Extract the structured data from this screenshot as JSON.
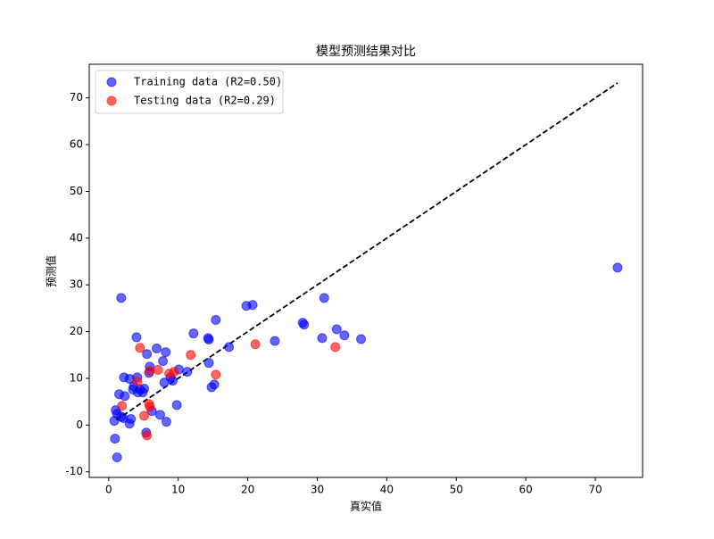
{
  "chart_data": {
    "type": "scatter",
    "title": "模型预测结果对比",
    "x_label": "真实值",
    "y_label": "预测值",
    "xlim": [
      -2.8,
      76.8
    ],
    "ylim": [
      -11.2,
      77.2
    ],
    "xticks": [
      0,
      10,
      20,
      30,
      40,
      50,
      60,
      70
    ],
    "yticks": [
      -10,
      0,
      10,
      20,
      30,
      40,
      50,
      60,
      70
    ],
    "legend": "upper left",
    "grid": false,
    "diagonal": {
      "color": "#000000",
      "x": [
        1.1,
        73.2
      ],
      "y": [
        1.1,
        73.2
      ]
    },
    "series": [
      {
        "name": "Training data (R2=0.50)",
        "color": "#0000ff",
        "x": [
          73.2,
          1.8,
          31.0,
          19.8,
          20.7,
          15.4,
          27.9,
          28.1,
          32.8,
          33.9,
          12.2,
          14.3,
          14.4,
          4.0,
          23.9,
          30.7,
          36.3,
          6.9,
          17.3,
          8.2,
          5.5,
          7.8,
          14.4,
          5.9,
          10.1,
          11.3,
          5.8,
          2.2,
          4.1,
          3.0,
          8.9,
          9.2,
          8.0,
          3.6,
          15.2,
          14.8,
          5.1,
          4.5,
          3.5,
          4.2,
          4.9,
          1.5,
          2.3,
          9.8,
          6.2,
          1.0,
          1.2,
          7.4,
          1.8,
          3.2,
          2.1,
          0.8,
          3.0,
          8.3,
          5.4,
          0.9,
          1.2
        ],
        "y": [
          33.7,
          27.2,
          27.2,
          25.5,
          25.7,
          22.5,
          21.9,
          21.5,
          20.5,
          19.2,
          19.6,
          18.6,
          18.3,
          18.8,
          18.0,
          18.6,
          18.4,
          16.4,
          16.7,
          15.6,
          15.2,
          13.7,
          13.3,
          12.5,
          11.9,
          11.4,
          11.2,
          10.2,
          10.2,
          9.9,
          10.2,
          9.5,
          9.1,
          8.3,
          8.7,
          8.1,
          7.8,
          7.6,
          7.6,
          7.0,
          7.0,
          6.6,
          6.2,
          4.3,
          3.0,
          3.2,
          2.4,
          2.2,
          1.8,
          1.3,
          1.5,
          0.9,
          0.3,
          0.7,
          -1.6,
          -2.9,
          -6.9
        ]
      },
      {
        "name": "Testing data (R2=0.29)",
        "color": "#ff0000",
        "x": [
          4.5,
          11.8,
          21.1,
          32.6,
          7.1,
          5.9,
          8.7,
          15.4,
          4.1,
          1.9,
          5.8,
          5.9,
          5.1,
          5.5,
          9.4
        ],
        "y": [
          16.5,
          15.0,
          17.3,
          16.7,
          11.8,
          11.6,
          11.0,
          10.8,
          9.3,
          4.1,
          4.5,
          3.9,
          2.0,
          -2.2,
          11.4
        ]
      }
    ]
  }
}
